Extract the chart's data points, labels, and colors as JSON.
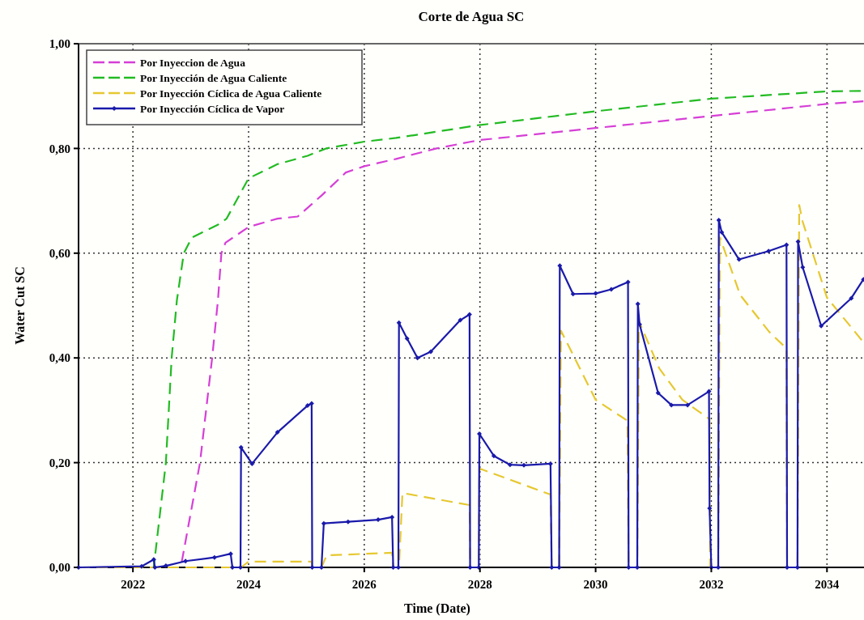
{
  "chart_data": {
    "type": "line",
    "title": "Corte de Agua SC",
    "xlabel": "Time (Date)",
    "ylabel": "Water Cut SC",
    "xlim": [
      2021.06,
      2034.64
    ],
    "xticks": [
      2022,
      2024,
      2026,
      2028,
      2030,
      2032,
      2034
    ],
    "ylim": [
      0,
      1
    ],
    "yticks": [
      {
        "value": 0,
        "label": "0,00"
      },
      {
        "value": 0.2,
        "label": "0,20"
      },
      {
        "value": 0.4,
        "label": "0,40"
      },
      {
        "value": 0.6,
        "label": "0,60"
      },
      {
        "value": 0.8,
        "label": "0,80"
      },
      {
        "value": 1,
        "label": "1,00"
      }
    ],
    "grid": true,
    "legend": "top left",
    "series": [
      {
        "name": "Por Inyeccion de Agua",
        "color": "#d63fd6",
        "line_style": "dashed",
        "marker": "none",
        "x": [
          2021.06,
          2022.8,
          2022.83,
          2023.16,
          2023.37,
          2023.47,
          2023.53,
          2023.6,
          2024.0,
          2024.5,
          2024.85,
          2025.26,
          2025.68,
          2026.0,
          2026.55,
          2027.25,
          2027.85,
          2028.0,
          2030.0,
          2032.0,
          2034.0,
          2034.63
        ],
        "values": [
          0,
          0,
          0.002,
          0.2,
          0.4,
          0.51,
          0.6,
          0.62,
          0.65,
          0.666,
          0.67,
          0.71,
          0.754,
          0.766,
          0.78,
          0.8,
          0.813,
          0.816,
          0.839,
          0.862,
          0.885,
          0.89
        ]
      },
      {
        "name": "Por Inyección de Agua Caliente",
        "color": "#22bb22",
        "line_style": "dashed",
        "marker": "none",
        "x": [
          2021.06,
          2022.36,
          2022.57,
          2022.67,
          2022.76,
          2022.88,
          2023.02,
          2023.48,
          2023.62,
          2024.0,
          2024.5,
          2025.02,
          2025.34,
          2026.0,
          2026.55,
          2027.95,
          2030.0,
          2032.0,
          2034.0,
          2034.63
        ],
        "values": [
          0,
          0,
          0.2,
          0.4,
          0.51,
          0.6,
          0.63,
          0.655,
          0.666,
          0.743,
          0.77,
          0.786,
          0.8,
          0.813,
          0.82,
          0.844,
          0.871,
          0.895,
          0.909,
          0.91
        ]
      },
      {
        "name": "Por Inyección Cíclica de Agua Caliente",
        "color": "#e6c830",
        "line_style": "dashed",
        "marker": "none",
        "x": [
          2021.06,
          2023.87,
          2024.0,
          2025.09,
          2025.1,
          2025.26,
          2025.35,
          2026.48,
          2026.5,
          2026.6,
          2026.66,
          2027.82,
          2027.83,
          2027.98,
          2027.99,
          2029.22,
          2029.24,
          2029.37,
          2029.4,
          2030.0,
          2030.55,
          2030.57,
          2030.72,
          2030.75,
          2031.1,
          2031.5,
          2031.97,
          2031.98,
          2032.12,
          2032.15,
          2032.5,
          2033.0,
          2033.3,
          2033.31,
          2033.49,
          2033.52,
          2033.58,
          2034.0,
          2034.63
        ],
        "values": [
          0,
          0,
          0.011,
          0.011,
          0,
          0,
          0.023,
          0.028,
          0,
          0,
          0.142,
          0.119,
          0,
          0,
          0.189,
          0.139,
          0,
          0,
          0.452,
          0.32,
          0.28,
          0,
          0,
          0.47,
          0.38,
          0.32,
          0.283,
          0,
          0,
          0.63,
          0.52,
          0.45,
          0.418,
          0,
          0,
          0.692,
          0.66,
          0.515,
          0.43
        ]
      },
      {
        "name": "Por Inyección Cíclica de Vapor",
        "color": "#1a1aaa",
        "line_style": "solid",
        "marker": "diamond",
        "x": [
          2021.06,
          2022.15,
          2022.36,
          2022.38,
          2022.57,
          2022.91,
          2023.41,
          2023.69,
          2023.72,
          2023.86,
          2023.87,
          2024.06,
          2024.5,
          2025.02,
          2025.09,
          2025.1,
          2025.26,
          2025.3,
          2025.72,
          2026.24,
          2026.48,
          2026.5,
          2026.59,
          2026.6,
          2026.74,
          2026.92,
          2027.15,
          2027.66,
          2027.82,
          2027.83,
          2027.98,
          2027.99,
          2028.24,
          2028.52,
          2028.76,
          2029.22,
          2029.24,
          2029.37,
          2029.38,
          2029.61,
          2030.0,
          2030.27,
          2030.56,
          2030.57,
          2030.72,
          2030.73,
          2030.76,
          2031.08,
          2031.31,
          2031.59,
          2031.96,
          2031.97,
          2032.0,
          2032.12,
          2032.13,
          2032.18,
          2032.48,
          2032.99,
          2033.3,
          2033.31,
          2033.49,
          2033.5,
          2033.58,
          2033.9,
          2034.42,
          2034.63
        ],
        "values": [
          0,
          0.002,
          0.015,
          0,
          0.003,
          0.012,
          0.019,
          0.026,
          0,
          0,
          0.229,
          0.198,
          0.258,
          0.309,
          0.313,
          0,
          0,
          0.084,
          0.087,
          0.091,
          0.096,
          0,
          0,
          0.467,
          0.437,
          0.4,
          0.412,
          0.472,
          0.483,
          0,
          0,
          0.255,
          0.213,
          0.196,
          0.195,
          0.198,
          0,
          0,
          0.576,
          0.522,
          0.523,
          0.531,
          0.545,
          0,
          0,
          0.503,
          0.464,
          0.333,
          0.31,
          0.31,
          0.336,
          0.113,
          0,
          0,
          0.663,
          0.64,
          0.588,
          0.604,
          0.616,
          0,
          0,
          0.622,
          0.573,
          0.461,
          0.514,
          0.55
        ]
      }
    ]
  }
}
